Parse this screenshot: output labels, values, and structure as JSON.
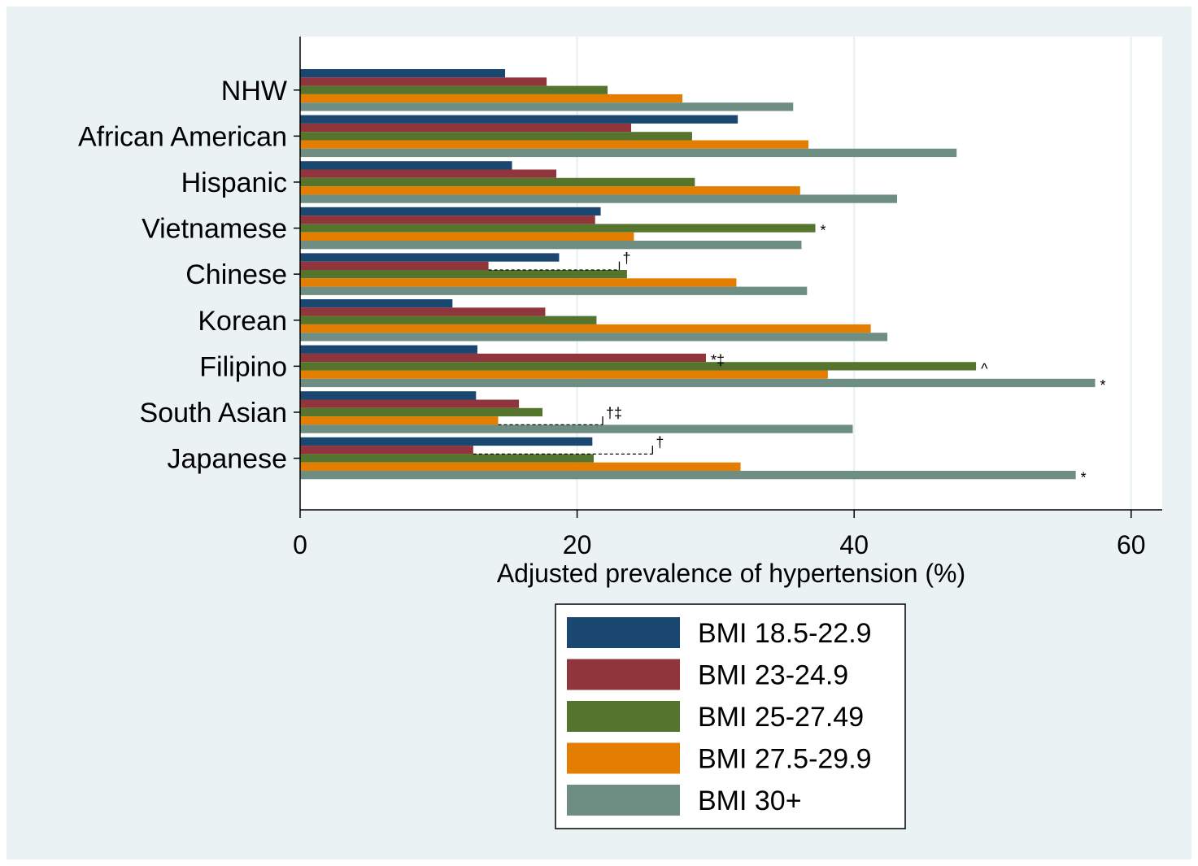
{
  "chart_data": {
    "type": "bar",
    "orientation": "horizontal",
    "title": "",
    "xlabel": "Adjusted prevalence of hypertension (%)",
    "ylabel": "",
    "xlim": [
      0,
      62
    ],
    "xticks": [
      0,
      20,
      40,
      60
    ],
    "grid": "vertical",
    "legend_position": "bottom",
    "categories": [
      "NHW",
      "African American",
      "Hispanic",
      "Vietnamese",
      "Chinese",
      "Korean",
      "Filipino",
      "South Asian",
      "Japanese"
    ],
    "series": [
      {
        "name": "BMI 18.5-22.9",
        "color": "#1a476f",
        "values": [
          14.8,
          31.6,
          15.3,
          21.7,
          18.7,
          11.0,
          12.8,
          12.7,
          21.1
        ]
      },
      {
        "name": "BMI 23-24.9",
        "color": "#90353b",
        "values": [
          17.8,
          23.9,
          18.5,
          21.3,
          13.6,
          17.7,
          29.3,
          15.8,
          12.5
        ]
      },
      {
        "name": "BMI 25-27.49",
        "color": "#55752f",
        "values": [
          22.2,
          28.3,
          28.5,
          37.2,
          23.6,
          21.4,
          48.8,
          17.5,
          21.2
        ]
      },
      {
        "name": "BMI 27.5-29.9",
        "color": "#e37e00",
        "values": [
          27.6,
          36.7,
          36.1,
          24.1,
          31.5,
          41.2,
          38.1,
          14.3,
          31.8
        ]
      },
      {
        "name": "BMI 30+",
        "color": "#6e8e84",
        "values": [
          35.6,
          47.4,
          43.1,
          36.2,
          36.6,
          42.4,
          57.4,
          39.9,
          56.0
        ]
      }
    ],
    "annotations": [
      {
        "category": "Vietnamese",
        "series": 2,
        "text": "*"
      },
      {
        "category": "Filipino",
        "series": 1,
        "text": "*‡"
      },
      {
        "category": "Filipino",
        "series": 2,
        "text": "^"
      },
      {
        "category": "Filipino",
        "series": 4,
        "text": "*"
      },
      {
        "category": "Japanese",
        "series": 4,
        "text": "*"
      }
    ],
    "brackets": [
      {
        "category": "Chinese",
        "from_series": 0,
        "to_series": 1,
        "text": "†"
      },
      {
        "category": "South Asian",
        "from_series": 2,
        "to_series": 3,
        "text": "†‡"
      },
      {
        "category": "Japanese",
        "from_series": 0,
        "to_series": 1,
        "text": "†"
      }
    ]
  },
  "colors": {
    "outer_background": "#eaf2f3",
    "plot_background": "#ffffff",
    "gridline": "#eaf2f3"
  }
}
